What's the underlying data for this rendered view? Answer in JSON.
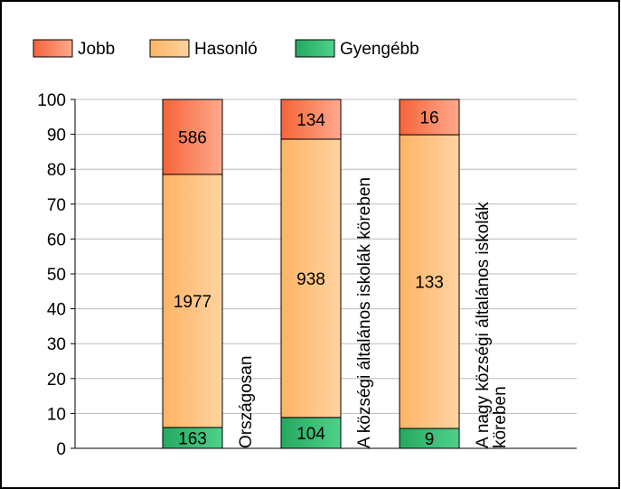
{
  "chart_data": {
    "type": "bar",
    "stacking": "percent",
    "categories": [
      "Országosan",
      "A községi általános iskolák köreben",
      "A nagy községi általános iskolák köreben"
    ],
    "series": [
      {
        "name": "Jobb",
        "color": "#f4643a",
        "color2": "#ffa98c",
        "values": [
          586,
          134,
          16
        ]
      },
      {
        "name": "Hasonló",
        "color": "#fdb465",
        "color2": "#ffd3a0",
        "values": [
          1977,
          938,
          133
        ]
      },
      {
        "name": "Gyengébb",
        "color": "#25a85f",
        "color2": "#4fd18a",
        "values": [
          163,
          104,
          9
        ]
      }
    ],
    "ylim": [
      0,
      100
    ],
    "yticks": [
      0,
      10,
      20,
      30,
      40,
      50,
      60,
      70,
      80,
      90,
      100
    ],
    "grid": true,
    "legend": "top-left"
  }
}
